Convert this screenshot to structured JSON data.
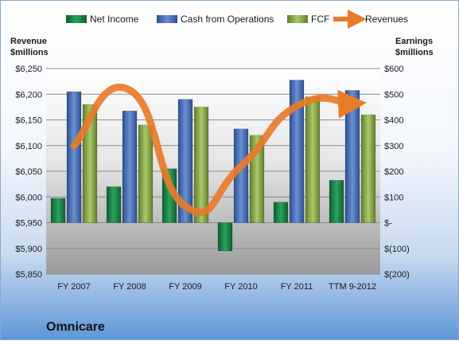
{
  "chart_data": {
    "type": "bar",
    "company": "Omnicare",
    "categories": [
      "FY 2007",
      "FY 2008",
      "FY 2009",
      "FY 2010",
      "FY 2011",
      "TTM 9-2012"
    ],
    "left_axis": {
      "title_line1": "Revenue",
      "title_line2": "$millions",
      "ylim": [
        5850,
        6250
      ],
      "ticks": [
        5850,
        5900,
        5950,
        6000,
        6050,
        6100,
        6150,
        6200,
        6250
      ],
      "tick_labels": [
        "$5,850",
        "$5,900",
        "$5,950",
        "$6,000",
        "$6,050",
        "$6,100",
        "$6,150",
        "$6,200",
        "$6,250"
      ]
    },
    "right_axis": {
      "title_line1": "Earnings",
      "title_line2": "$millions",
      "ylim": [
        -200,
        600
      ],
      "ticks": [
        -200,
        -100,
        0,
        100,
        200,
        300,
        400,
        500,
        600
      ],
      "tick_labels": [
        "$(200)",
        "$(100)",
        "$-",
        "$100",
        "$200",
        "$300",
        "$400",
        "$500",
        "$600"
      ]
    },
    "series": [
      {
        "name": "Net Income",
        "axis": "right",
        "kind": "bar",
        "color": "#1f8a4c",
        "values": [
          95,
          140,
          210,
          -110,
          80,
          165
        ]
      },
      {
        "name": "Cash from Operations",
        "axis": "right",
        "kind": "bar",
        "color": "#4a72b8",
        "values": [
          510,
          435,
          480,
          365,
          555,
          515
        ]
      },
      {
        "name": "FCF",
        "axis": "right",
        "kind": "bar",
        "color": "#8fb04e",
        "values": [
          460,
          380,
          450,
          340,
          490,
          420
        ]
      },
      {
        "name": "Revenues",
        "axis": "left",
        "kind": "line",
        "color": "#e87b2a",
        "values": [
          6100,
          6208,
          5982,
          6060,
          6177,
          6182
        ]
      }
    ],
    "legend_position": "top",
    "grid": true
  }
}
